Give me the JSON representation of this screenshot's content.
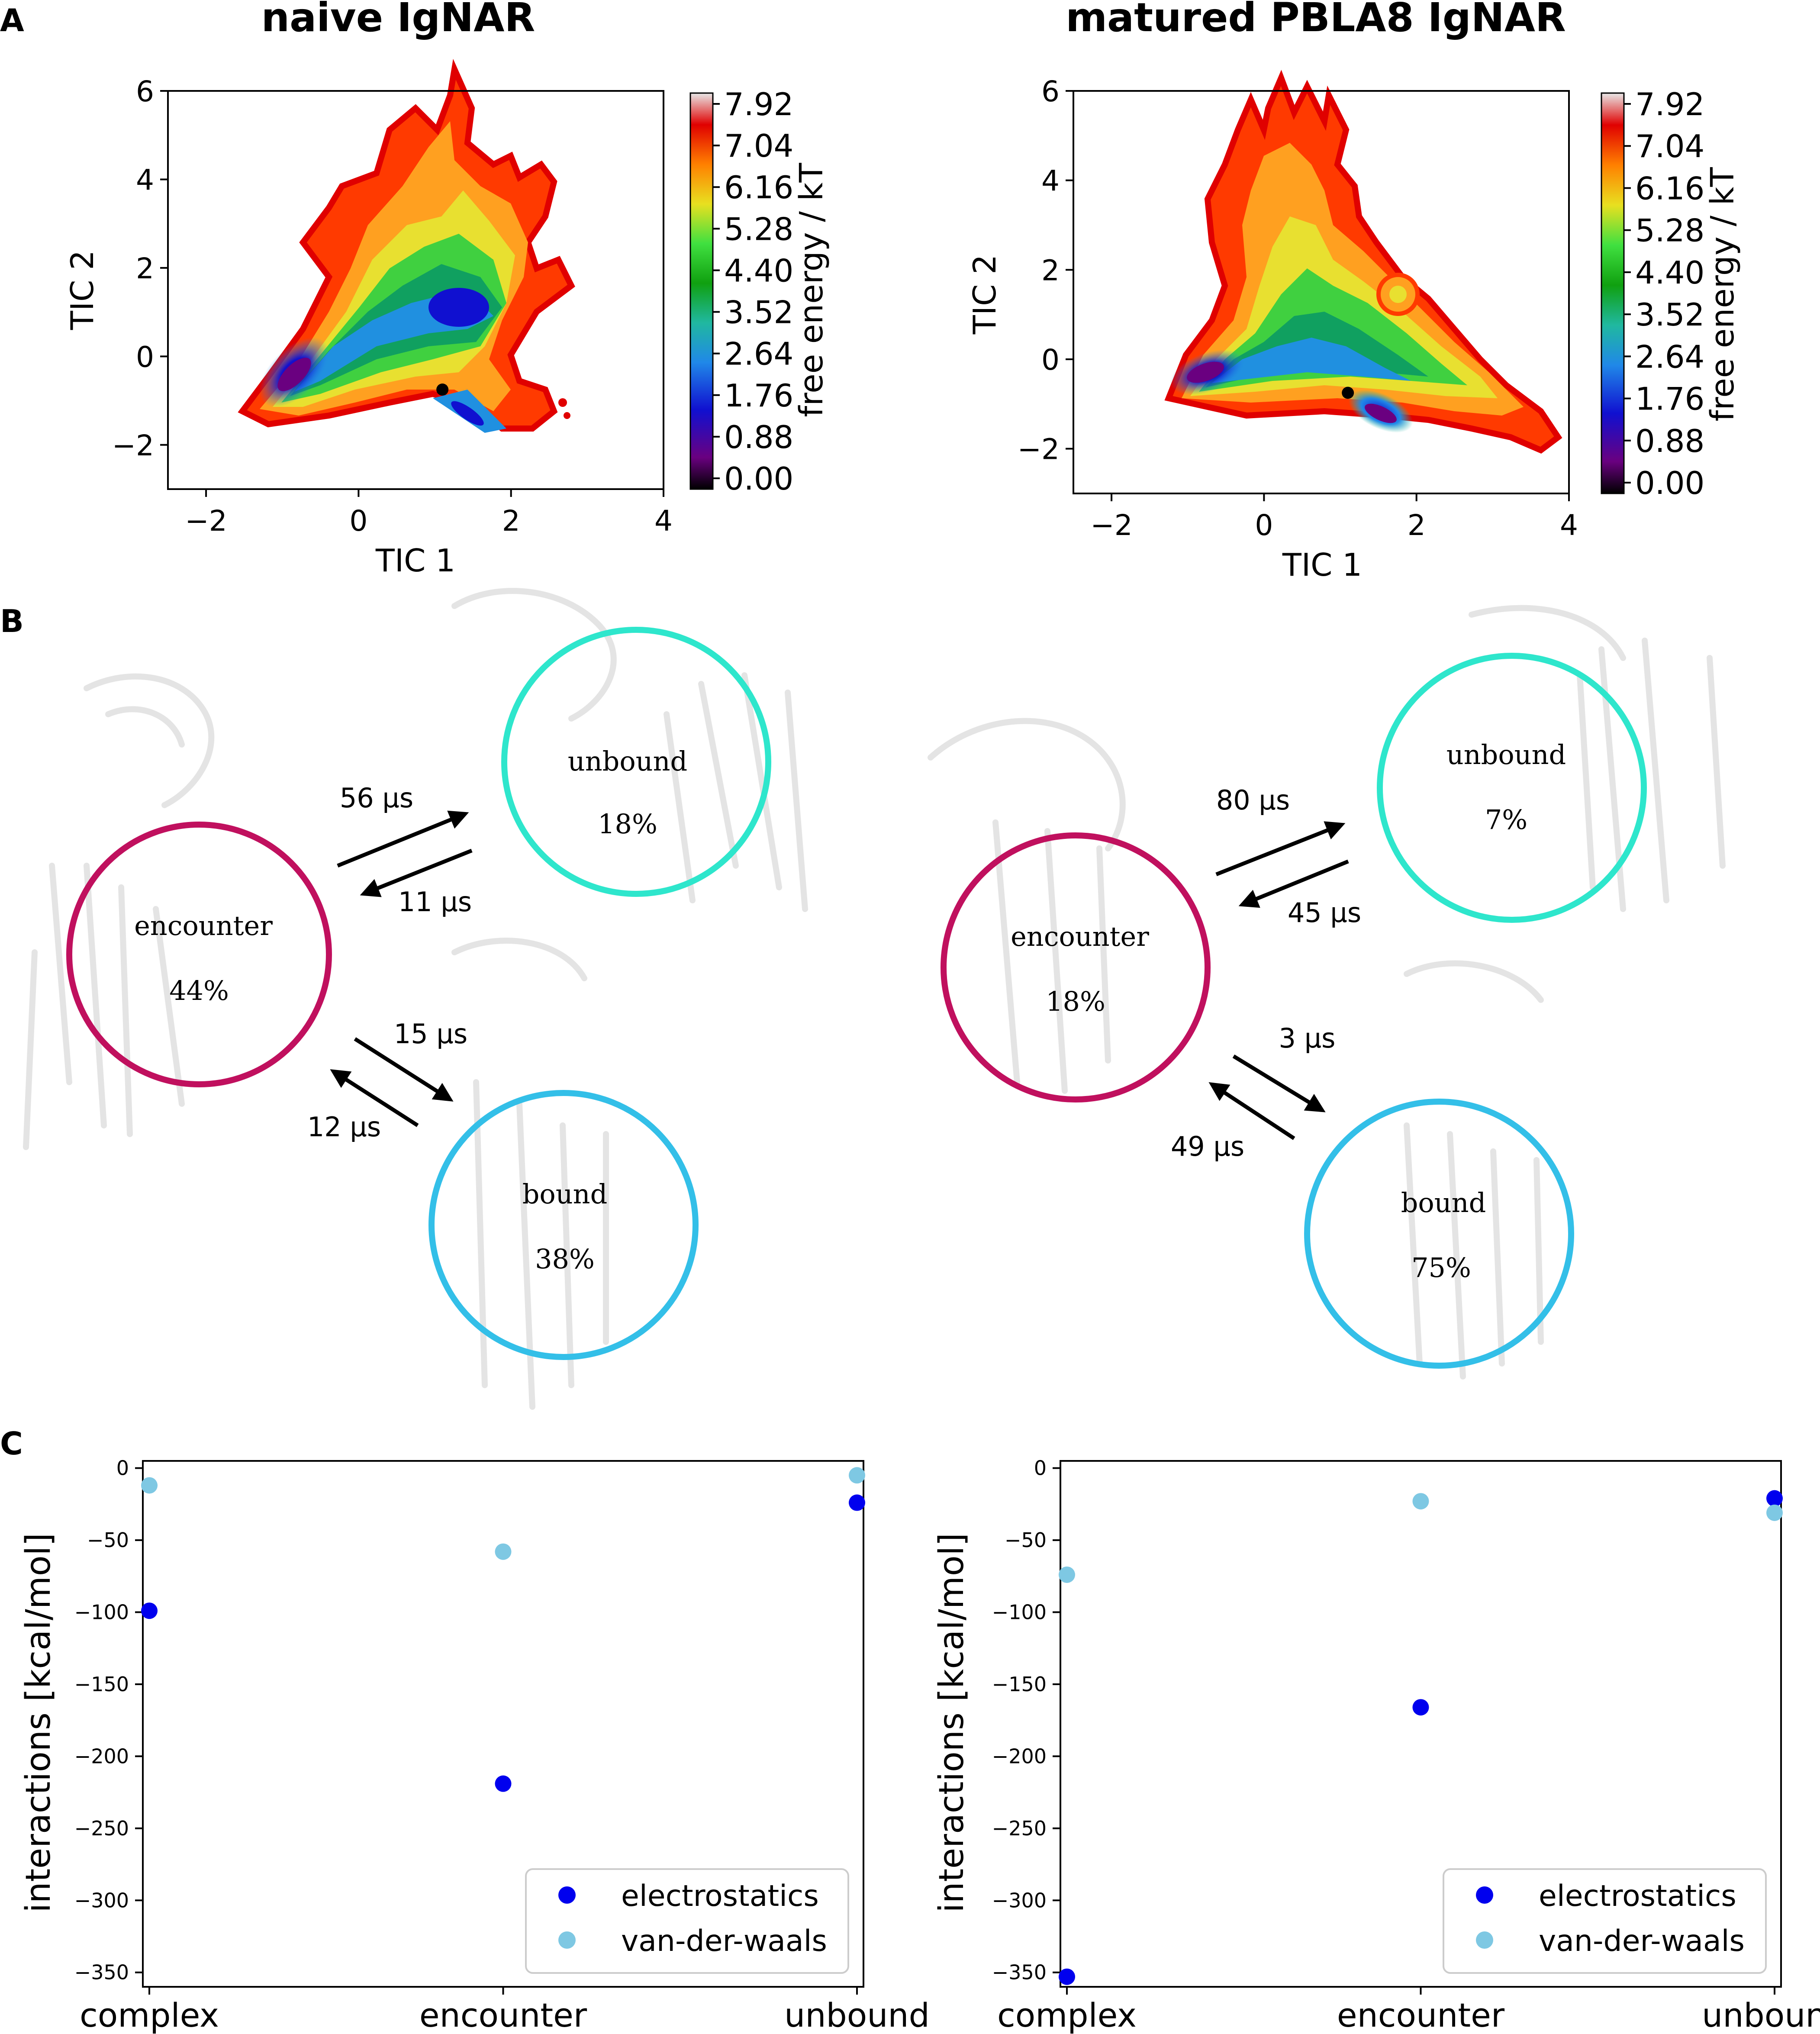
{
  "panel_labels": [
    "A",
    "B",
    "C"
  ],
  "colors": {
    "electrostatics": "#0000ee",
    "van_der_waals": "#7ec8e3",
    "encounter_ring": "#c0105e",
    "unbound_ring": "#2ee6cc",
    "bound_ring": "#33bfe8"
  },
  "chart_data": [
    {
      "type": "heatmap",
      "title": "naive IgNAR",
      "xlabel": "TIC 1",
      "ylabel": "TIC 2",
      "xticks": [
        "−2",
        "0",
        "2",
        "4"
      ],
      "yticks": [
        "6",
        "4",
        "2",
        "0",
        "−2"
      ],
      "xlim": [
        -2.5,
        4
      ],
      "ylim": [
        -3,
        6
      ],
      "colorbar_label": "free energy / kT",
      "colorbar_ticks": [
        "7.92",
        "7.04",
        "6.16",
        "5.28",
        "4.40",
        "3.52",
        "2.64",
        "1.76",
        "0.88",
        "0.00"
      ],
      "marker": {
        "x": 1.1,
        "y": -0.75
      }
    },
    {
      "type": "heatmap",
      "title": "matured PBLA8 IgNAR",
      "xlabel": "TIC 1",
      "ylabel": "TIC 2",
      "xticks": [
        "−2",
        "0",
        "2",
        "4"
      ],
      "yticks": [
        "6",
        "4",
        "2",
        "0",
        "−2"
      ],
      "xlim": [
        -2.5,
        4
      ],
      "ylim": [
        -3,
        6
      ],
      "colorbar_label": "free energy / kT",
      "colorbar_ticks": [
        "7.92",
        "7.04",
        "6.16",
        "5.28",
        "4.40",
        "3.52",
        "2.64",
        "1.76",
        "0.88",
        "0.00"
      ],
      "marker": {
        "x": 1.1,
        "y": -0.75
      }
    },
    {
      "type": "scatter",
      "categories": [
        "complex",
        "encounter",
        "unbound"
      ],
      "ylabel": "interactions [kcal/mol]",
      "yticks": [
        "0",
        "−50",
        "−100",
        "−150",
        "−200",
        "−250",
        "−300",
        "−350"
      ],
      "ylim": [
        -360,
        5
      ],
      "legend": [
        "electrostatics",
        "van-der-waals"
      ],
      "series": [
        {
          "name": "electrostatics",
          "values": [
            -99,
            -219,
            -24
          ]
        },
        {
          "name": "van-der-waals",
          "values": [
            -12,
            -58,
            -5
          ]
        }
      ]
    },
    {
      "type": "scatter",
      "categories": [
        "complex",
        "encounter",
        "unbound"
      ],
      "ylabel": "interactions [kcal/mol]",
      "yticks": [
        "0",
        "−50",
        "−100",
        "−150",
        "−200",
        "−250",
        "−300",
        "−350"
      ],
      "ylim": [
        -360,
        5
      ],
      "legend": [
        "electrostatics",
        "van-der-waals"
      ],
      "series": [
        {
          "name": "electrostatics",
          "values": [
            -353,
            -166,
            -21
          ]
        },
        {
          "name": "van-der-waals",
          "values": [
            -74,
            -23,
            -31
          ]
        }
      ]
    }
  ],
  "states": {
    "left": {
      "encounter": {
        "label": "encounter",
        "pct": "44%"
      },
      "unbound": {
        "label": "unbound",
        "pct": "18%"
      },
      "bound": {
        "label": "bound",
        "pct": "38%"
      },
      "rates": {
        "enc_to_unb": "56 μs",
        "unb_to_enc": "11 μs",
        "enc_to_bnd": "15 μs",
        "bnd_to_enc": "12 μs"
      }
    },
    "right": {
      "encounter": {
        "label": "encounter",
        "pct": "18%"
      },
      "unbound": {
        "label": "unbound",
        "pct": "7%"
      },
      "bound": {
        "label": "bound",
        "pct": "75%"
      },
      "rates": {
        "enc_to_unb": "80 μs",
        "unb_to_enc": "45 μs",
        "enc_to_bnd": "3 μs",
        "bnd_to_enc": "49 μs"
      }
    }
  }
}
